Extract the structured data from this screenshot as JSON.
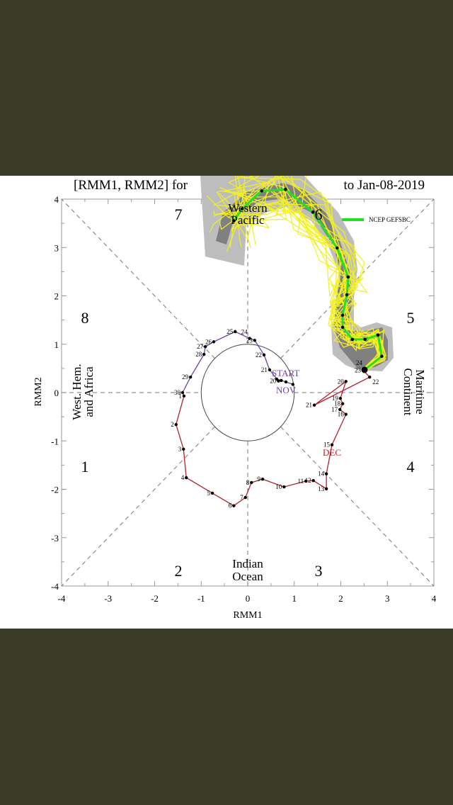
{
  "chart_data": {
    "type": "line",
    "title_left": "[RMM1, RMM2] for",
    "title_right": "to Jan-08-2019",
    "xlabel": "RMM1",
    "ylabel": "RMM2",
    "xlim": [
      -4,
      4
    ],
    "ylim": [
      -4,
      4
    ],
    "xticks": [
      "-4",
      "-3",
      "-2",
      "-1",
      "0",
      "1",
      "2",
      "3",
      "4"
    ],
    "yticks": [
      "-4",
      "-3",
      "-2",
      "-1",
      "0",
      "1",
      "2",
      "3",
      "4"
    ],
    "phases": [
      "1",
      "2",
      "3",
      "4",
      "5",
      "6",
      "7",
      "8"
    ],
    "regions": {
      "western_pacific": [
        "Western",
        "Pacific"
      ],
      "indian_ocean": [
        "Indian",
        "Ocean"
      ],
      "west_hem": [
        "West. Hem.",
        "and Africa"
      ],
      "maritime": [
        "Maritime",
        "Continent"
      ]
    },
    "annotations": {
      "start": "START",
      "nov": "NOV",
      "dec": "DEC"
    },
    "legend": {
      "label": "NCEP GEFSBC",
      "color": "#22e022",
      "placement": "top-right"
    },
    "colors": {
      "nov": "#6a3fa8",
      "dec": "#b2222a",
      "ensemble": "#f2f020",
      "spread_outer": "#bdbdbd",
      "spread_inner": "#808080",
      "mean": "#22e022"
    },
    "series": [
      {
        "name": "NOV",
        "points": [
          {
            "d": "",
            "x": 0.97,
            "y": 0.17
          },
          {
            "d": "",
            "x": 0.82,
            "y": 0.22
          },
          {
            "d": "",
            "x": 0.72,
            "y": 0.25
          },
          {
            "d": "",
            "x": 0.62,
            "y": 0.28
          },
          {
            "d": "20",
            "x": 0.66,
            "y": 0.24
          },
          {
            "d": "21",
            "x": 0.47,
            "y": 0.47
          },
          {
            "d": "22",
            "x": 0.35,
            "y": 0.78
          },
          {
            "d": "23",
            "x": 0.15,
            "y": 1.08
          },
          {
            "d": "24",
            "x": 0.04,
            "y": 1.12
          },
          {
            "d": "25",
            "x": -0.27,
            "y": 1.26
          },
          {
            "d": "26",
            "x": -0.73,
            "y": 1.05
          },
          {
            "d": "27",
            "x": -0.91,
            "y": 0.95
          },
          {
            "d": "28",
            "x": -0.94,
            "y": 0.79
          },
          {
            "d": "29",
            "x": -1.23,
            "y": 0.32
          },
          {
            "d": "30",
            "x": -1.4,
            "y": 0.0
          }
        ]
      },
      {
        "name": "DEC",
        "points": [
          {
            "d": "1",
            "x": -1.37,
            "y": -0.07
          },
          {
            "d": "2",
            "x": -1.54,
            "y": -0.66
          },
          {
            "d": "3",
            "x": -1.38,
            "y": -1.17
          },
          {
            "d": "4",
            "x": -1.32,
            "y": -1.76
          },
          {
            "d": "5",
            "x": -0.76,
            "y": -2.08
          },
          {
            "d": "6",
            "x": -0.3,
            "y": -2.34
          },
          {
            "d": "7",
            "x": -0.05,
            "y": -2.17
          },
          {
            "d": "8",
            "x": 0.08,
            "y": -1.86
          },
          {
            "d": "9",
            "x": 0.32,
            "y": -1.79
          },
          {
            "d": "10",
            "x": 0.78,
            "y": -1.95
          },
          {
            "d": "11",
            "x": 1.25,
            "y": -1.83
          },
          {
            "d": "12",
            "x": 1.41,
            "y": -1.82
          },
          {
            "d": "13",
            "x": 1.69,
            "y": -1.99
          },
          {
            "d": "14",
            "x": 1.69,
            "y": -1.68
          },
          {
            "d": "15",
            "x": 1.81,
            "y": -1.08
          },
          {
            "d": "16",
            "x": 2.11,
            "y": -0.45
          },
          {
            "d": "17",
            "x": 1.98,
            "y": -0.35
          },
          {
            "d": "18",
            "x": 2.04,
            "y": -0.23
          },
          {
            "d": "19",
            "x": 1.99,
            "y": -0.12
          },
          {
            "d": "20",
            "x": 2.11,
            "y": 0.23
          },
          {
            "d": "21",
            "x": 1.43,
            "y": -0.26
          },
          {
            "d": "22",
            "x": 2.62,
            "y": 0.32
          },
          {
            "d": "23",
            "x": 2.48,
            "y": 0.46
          },
          {
            "d": "24",
            "x": 2.51,
            "y": 0.47
          }
        ]
      },
      {
        "name": "NCEP GEFSBC",
        "points": [
          {
            "x": 2.51,
            "y": 0.47
          },
          {
            "x": 2.88,
            "y": 0.75
          },
          {
            "x": 2.8,
            "y": 1.19
          },
          {
            "x": 2.52,
            "y": 1.1
          },
          {
            "x": 2.25,
            "y": 1.1
          },
          {
            "x": 2.04,
            "y": 1.35
          },
          {
            "x": 2.04,
            "y": 1.6
          },
          {
            "x": 2.13,
            "y": 2.02
          },
          {
            "x": 2.16,
            "y": 2.39
          },
          {
            "x": 1.92,
            "y": 2.99
          },
          {
            "x": 1.4,
            "y": 3.73
          },
          {
            "x": 0.81,
            "y": 4.2
          },
          {
            "x": 0.3,
            "y": 4.17
          },
          {
            "x": -0.12,
            "y": 3.8
          },
          {
            "x": -0.3,
            "y": 3.55
          }
        ]
      }
    ]
  }
}
